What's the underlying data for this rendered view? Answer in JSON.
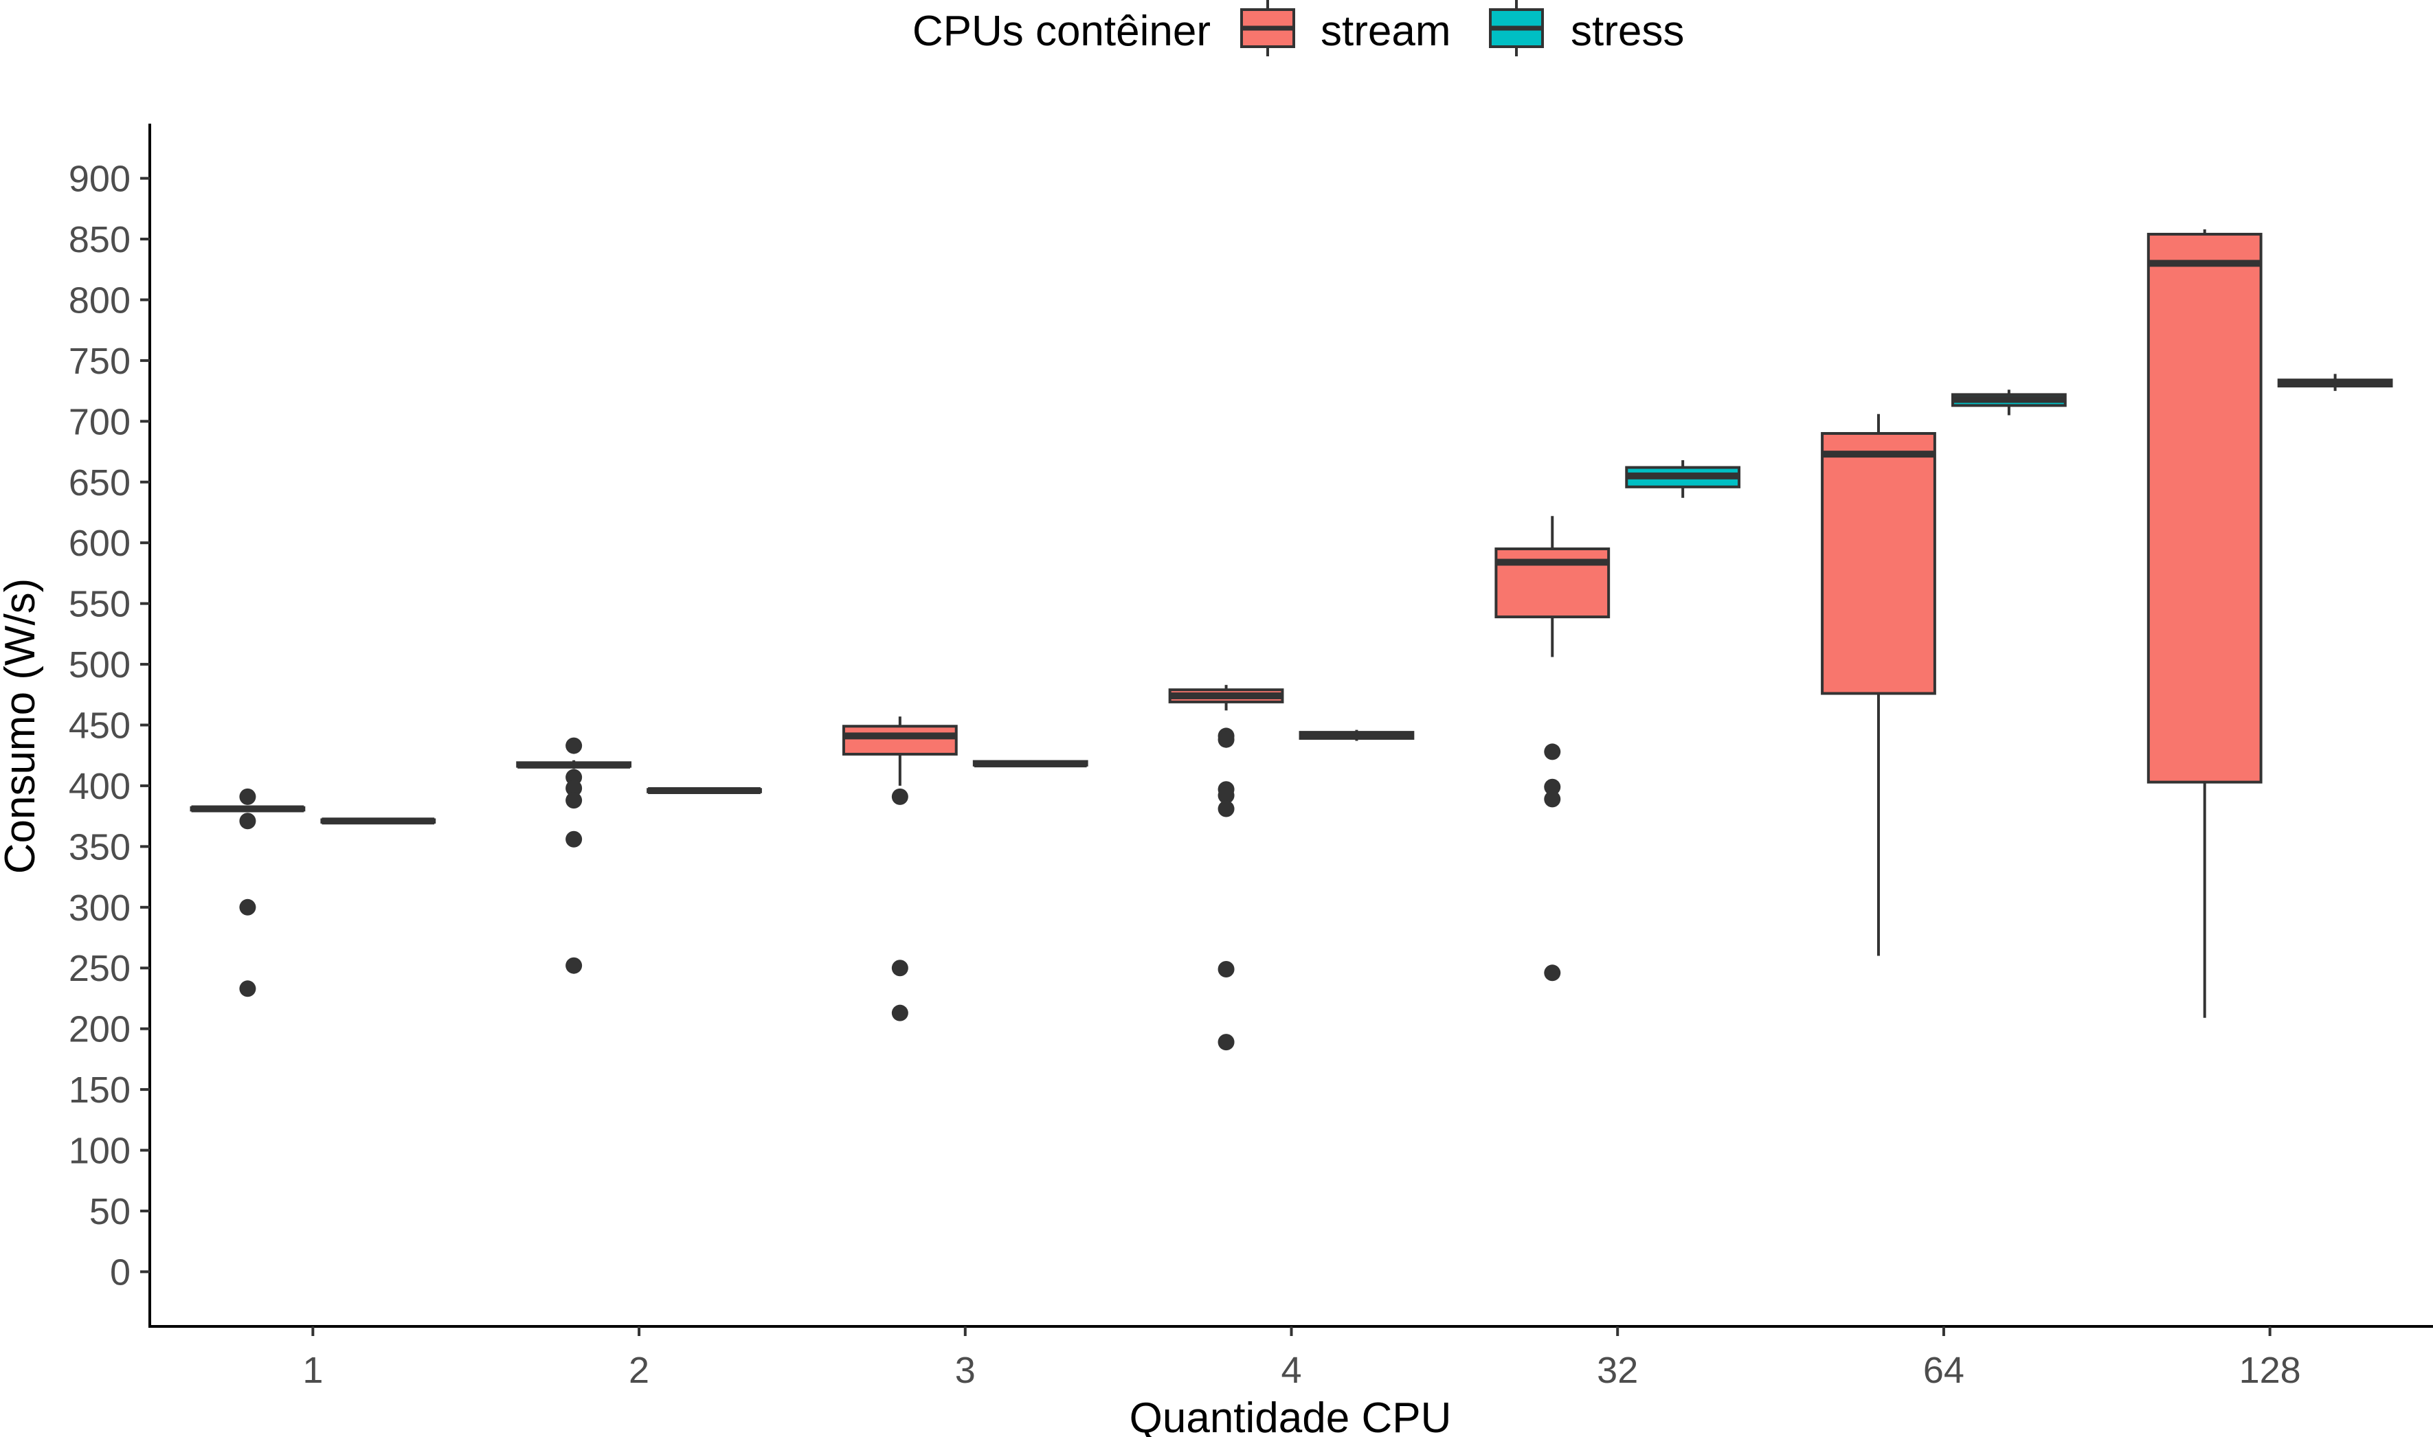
{
  "chart_data": {
    "type": "boxplot",
    "xlabel": "Quantidade CPU",
    "ylabel": "Consumo (W/s)",
    "ylim": [
      -45,
      945
    ],
    "yticks": [
      0,
      50,
      100,
      150,
      200,
      250,
      300,
      350,
      400,
      450,
      500,
      550,
      600,
      650,
      700,
      750,
      800,
      850,
      900
    ],
    "categories": [
      "1",
      "2",
      "3",
      "4",
      "32",
      "64",
      "128"
    ],
    "legend": {
      "title": "CPUs contêiner",
      "position": "top",
      "entries": [
        "stream",
        "stress"
      ]
    },
    "grid": false,
    "series": [
      {
        "name": "stream",
        "color": "#F8766D",
        "boxes": [
          {
            "category": "1",
            "lower": 380,
            "q1": 380,
            "median": 381,
            "q3": 382,
            "upper": 383,
            "outliers": [
              391,
              371,
              300,
              233
            ]
          },
          {
            "category": "2",
            "lower": 414,
            "q1": 416,
            "median": 417,
            "q3": 419,
            "upper": 421,
            "outliers": [
              433,
              407,
              398,
              388,
              356,
              252
            ]
          },
          {
            "category": "3",
            "lower": 400,
            "q1": 426,
            "median": 441,
            "q3": 449,
            "upper": 457,
            "outliers": [
              391,
              250,
              213
            ]
          },
          {
            "category": "4",
            "lower": 462,
            "q1": 469,
            "median": 474,
            "q3": 479,
            "upper": 483,
            "outliers": [
              441,
              438,
              397,
              392,
              381,
              249,
              189
            ]
          },
          {
            "category": "32",
            "lower": 506,
            "q1": 539,
            "median": 584,
            "q3": 595,
            "upper": 622,
            "outliers": [
              428,
              399,
              389,
              246
            ]
          },
          {
            "category": "64",
            "lower": 260,
            "q1": 476,
            "median": 673,
            "q3": 690,
            "upper": 706,
            "outliers": []
          },
          {
            "category": "128",
            "lower": 209,
            "q1": 403,
            "median": 830,
            "q3": 854,
            "upper": 858,
            "outliers": []
          }
        ]
      },
      {
        "name": "stress",
        "color": "#00BFC4",
        "boxes": [
          {
            "category": "1",
            "lower": 370,
            "q1": 370,
            "median": 371,
            "q3": 372,
            "upper": 373,
            "outliers": []
          },
          {
            "category": "2",
            "lower": 395,
            "q1": 395,
            "median": 396,
            "q3": 397,
            "upper": 398,
            "outliers": []
          },
          {
            "category": "3",
            "lower": 416,
            "q1": 417,
            "median": 418,
            "q3": 420,
            "upper": 421,
            "outliers": []
          },
          {
            "category": "4",
            "lower": 437,
            "q1": 439,
            "median": 441,
            "q3": 444,
            "upper": 446,
            "outliers": []
          },
          {
            "category": "32",
            "lower": 637,
            "q1": 646,
            "median": 655,
            "q3": 662,
            "upper": 668,
            "outliers": []
          },
          {
            "category": "64",
            "lower": 705,
            "q1": 713,
            "median": 718,
            "q3": 722,
            "upper": 726,
            "outliers": []
          },
          {
            "category": "128",
            "lower": 725,
            "q1": 729,
            "median": 731,
            "q3": 734,
            "upper": 739,
            "outliers": []
          }
        ]
      }
    ]
  }
}
